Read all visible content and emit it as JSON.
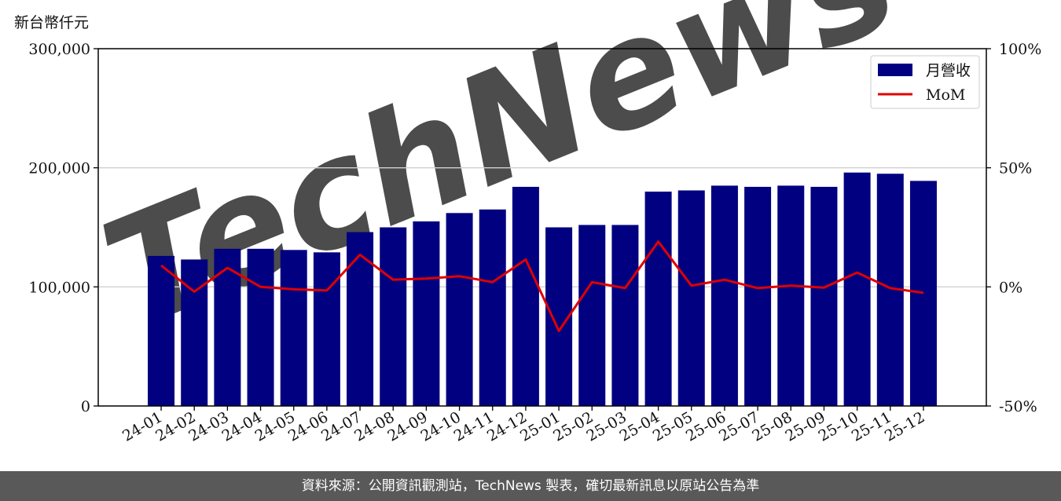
{
  "chart_data": {
    "type": "bar",
    "unit_label": "新台幣仟元",
    "categories": [
      "24-01",
      "24-02",
      "24-03",
      "24-04",
      "24-05",
      "24-06",
      "24-07",
      "24-08",
      "24-09",
      "24-10",
      "24-11",
      "24-12",
      "25-01",
      "25-02",
      "25-03",
      "25-04",
      "25-05",
      "25-06",
      "25-07",
      "25-08",
      "25-09",
      "25-10",
      "25-11",
      "25-12"
    ],
    "series": [
      {
        "name": "月營收",
        "type": "bar",
        "axis": "left",
        "color": "#000080",
        "values": [
          126000,
          123000,
          132000,
          132000,
          131000,
          129000,
          146000,
          150000,
          155000,
          162000,
          165000,
          184000,
          150000,
          152000,
          152000,
          180000,
          181000,
          185000,
          184000,
          185000,
          184000,
          196000,
          195000,
          189000
        ]
      },
      {
        "name": "MoM",
        "type": "line",
        "axis": "right",
        "color": "#e00000",
        "values": [
          9,
          -2,
          8,
          0,
          -1,
          -1.5,
          13.5,
          3,
          3.5,
          4.5,
          2,
          11.5,
          -18.5,
          2,
          -0.5,
          19,
          0.5,
          3,
          -0.5,
          0.5,
          -0.3,
          6,
          -0.5,
          -2.5
        ]
      }
    ],
    "y_left": {
      "min": 0,
      "max": 300000,
      "ticks": [
        0,
        100000,
        200000,
        300000
      ],
      "tick_labels": [
        "0",
        "100,000",
        "200,000",
        "300,000"
      ]
    },
    "y_right": {
      "min": -50,
      "max": 100,
      "ticks": [
        -50,
        0,
        50,
        100
      ],
      "tick_labels": [
        "-50%",
        "0%",
        "50%",
        "100%"
      ]
    },
    "grid": "horizontal",
    "legend": {
      "position": "top-right",
      "entries": [
        "月營收",
        "MoM"
      ]
    },
    "watermark": "TechNews"
  },
  "footer": {
    "source_text": "資料來源：公開資訊觀測站，TechNews 製表，確切最新訊息以原站公告為準"
  }
}
